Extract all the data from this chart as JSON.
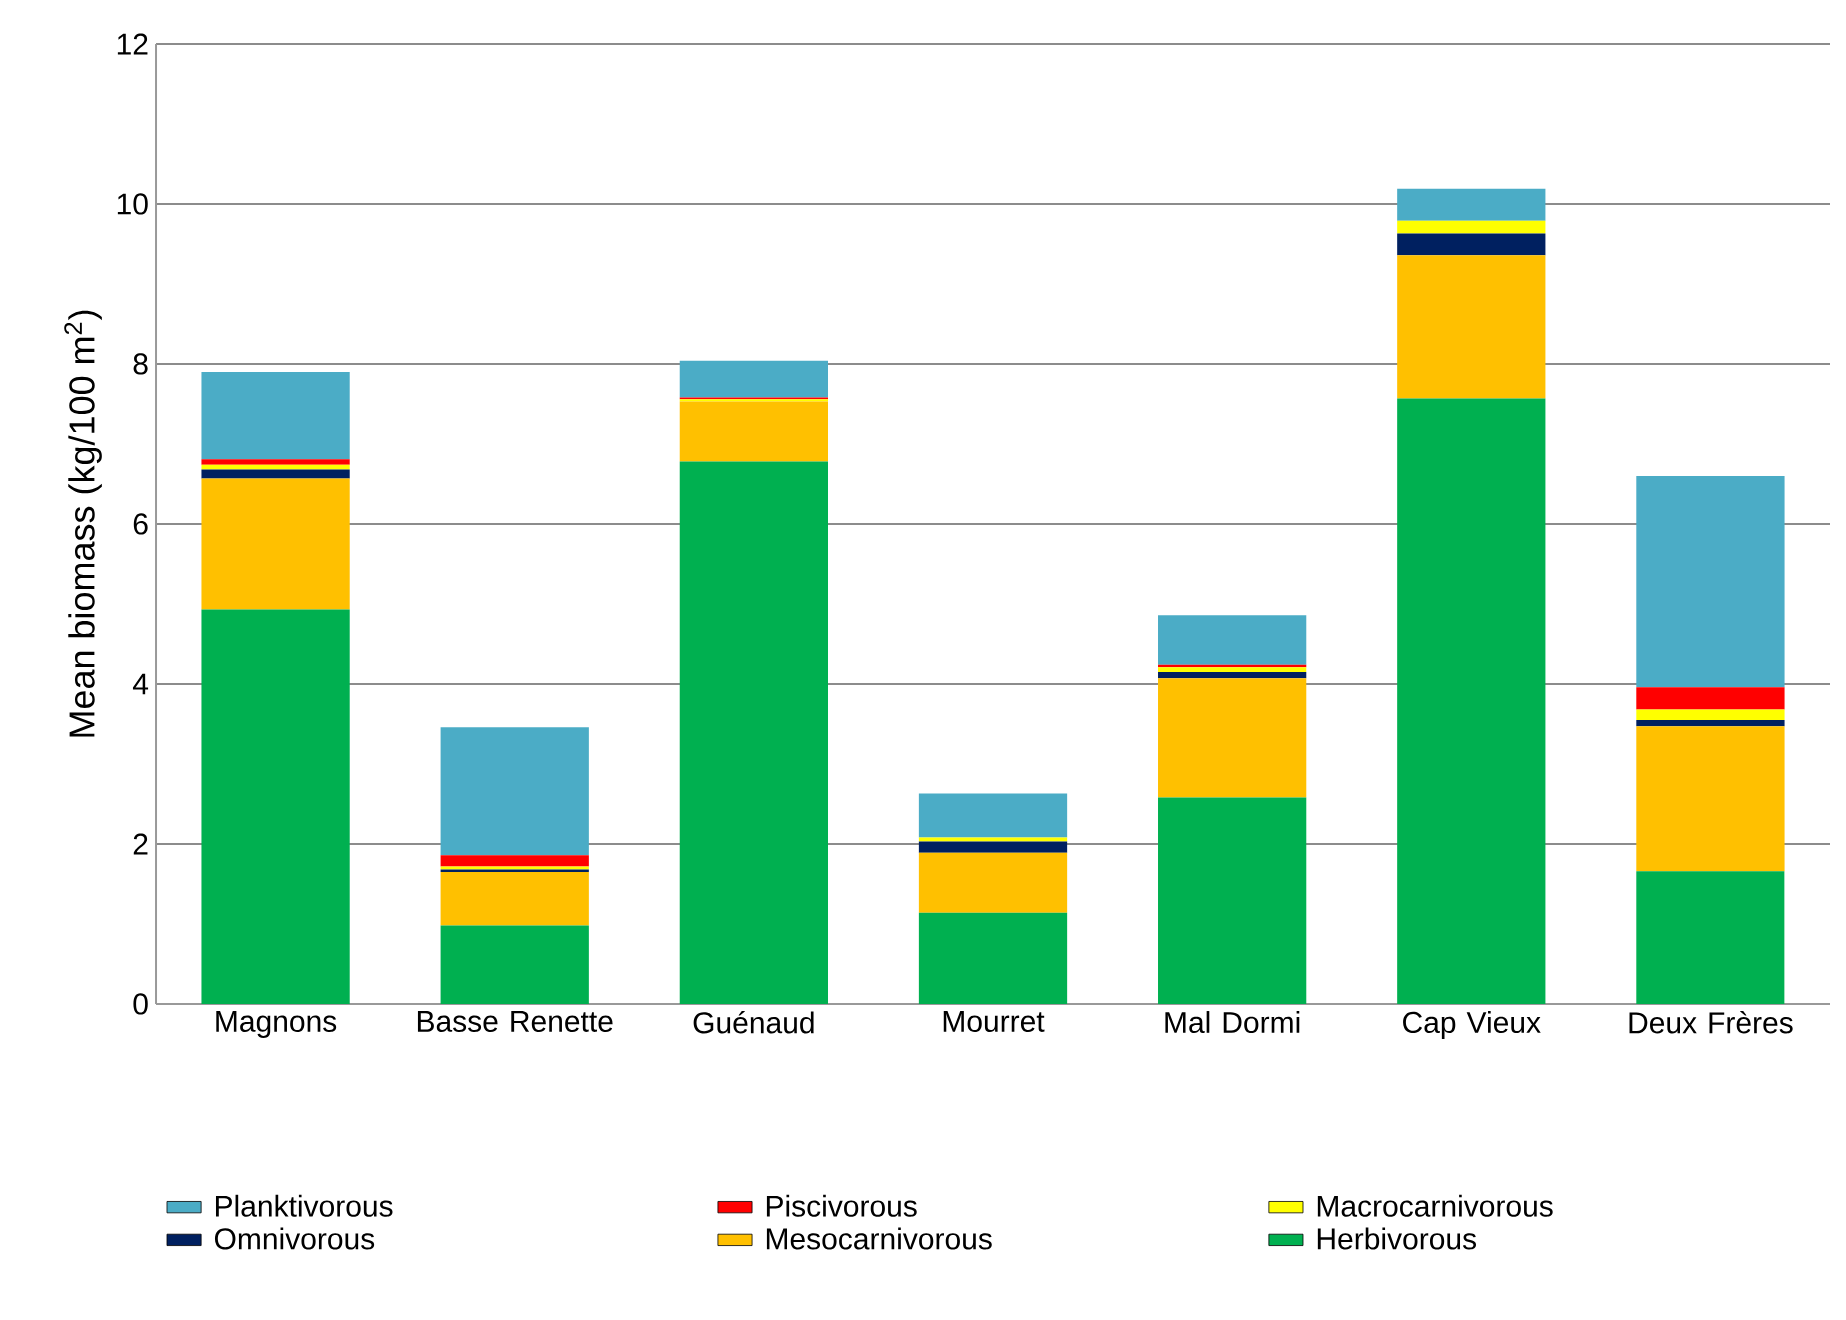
{
  "chart_data": {
    "type": "bar",
    "stacked": true,
    "ylabel": "Mean biomass (kg/100 m$^{2}$)",
    "categories": [
      "Magnons",
      "Basse Renette",
      "Guénaud",
      "Mourret",
      "Mal Dormi",
      "Cap Vieux",
      "Deux Frères"
    ],
    "ylim": [
      0,
      12
    ],
    "yticks": [
      0,
      2,
      4,
      6,
      8,
      10,
      12
    ],
    "grid": "y",
    "legend": "bottom",
    "series": [
      {
        "name": "Herbivorous",
        "color": "#00b050",
        "values": [
          4.93,
          0.98,
          6.78,
          1.14,
          2.58,
          7.57,
          1.66
        ]
      },
      {
        "name": "Mesocarnivorous",
        "color": "#ffc000",
        "values": [
          1.64,
          0.67,
          0.75,
          0.75,
          1.49,
          1.79,
          1.81
        ]
      },
      {
        "name": "Omnivorous",
        "color": "#002060",
        "values": [
          0.11,
          0.03,
          0,
          0.14,
          0.08,
          0.27,
          0.08
        ]
      },
      {
        "name": "Macrocarnivorous",
        "color": "#ffff00",
        "values": [
          0.06,
          0.04,
          0.03,
          0.05,
          0.06,
          0.16,
          0.13
        ]
      },
      {
        "name": "Piscivorous",
        "color": "#ff0000",
        "values": [
          0.07,
          0.14,
          0.02,
          0,
          0.03,
          0,
          0.28
        ]
      },
      {
        "name": "Planktivorous",
        "color": "#4bacc6",
        "values": [
          1.09,
          1.6,
          0.46,
          0.55,
          0.62,
          0.4,
          2.64
        ]
      }
    ]
  }
}
